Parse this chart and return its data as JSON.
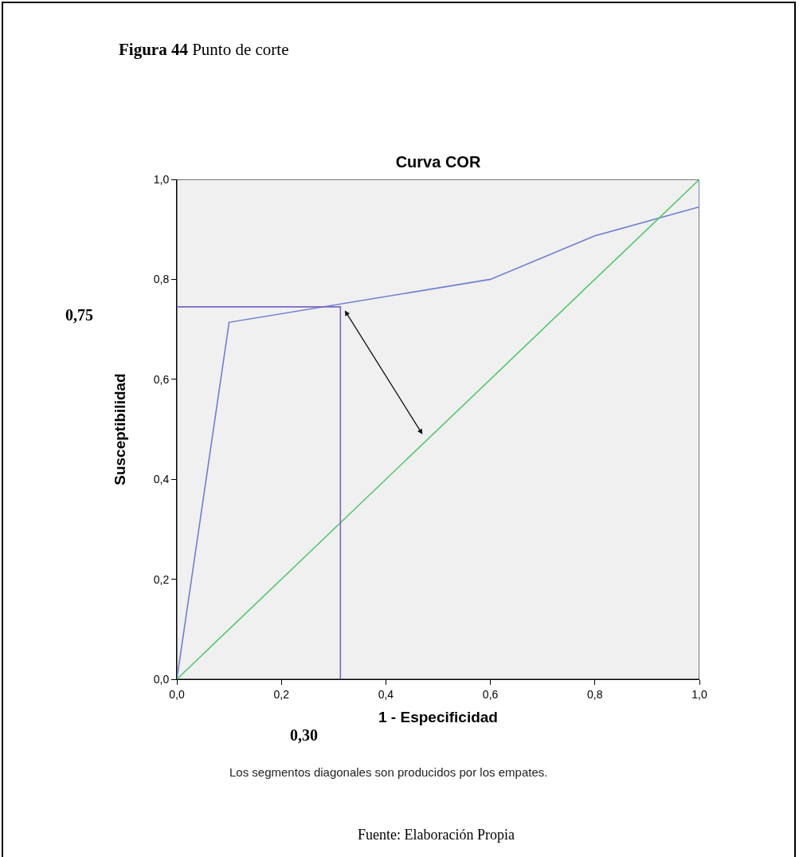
{
  "chart_data": {
    "type": "line",
    "title": "Curva COR",
    "xlabel": "1 - Especificidad",
    "ylabel": "Susceptibilidad",
    "series": [
      {
        "color": "#6f7fd0",
        "x": [
          0,
          0.1,
          0.6,
          0.8,
          1,
          1
        ],
        "values": [
          0,
          0.714,
          0.8,
          0.887,
          0.945,
          1
        ]
      },
      {
        "color": "#52c86a",
        "x": [
          0,
          1
        ],
        "values": [
          0,
          1
        ]
      },
      {
        "color": "#7a68c0",
        "x": [
          0,
          0.313,
          0.313
        ],
        "values": [
          0.745,
          0.745,
          0
        ]
      }
    ],
    "xlim": [
      0,
      1
    ],
    "ylim": [
      0,
      1
    ],
    "xticks": [
      {
        "value": 0,
        "label": "0,0"
      },
      {
        "value": 0.2,
        "label": "0,2"
      },
      {
        "value": 0.4,
        "label": "0,4"
      },
      {
        "value": 0.6,
        "label": "0,6"
      },
      {
        "value": 0.8,
        "label": "0,8"
      },
      {
        "value": 1,
        "label": "1,0"
      }
    ],
    "yticks": [
      {
        "value": 0,
        "label": "0,0"
      },
      {
        "value": 0.2,
        "label": "0,2"
      },
      {
        "value": 0.4,
        "label": "0,4"
      },
      {
        "value": 0.6,
        "label": "0,6"
      },
      {
        "value": 0.8,
        "label": "0,8"
      },
      {
        "value": 1,
        "label": "1,0"
      }
    ],
    "grid": false,
    "marker": "none",
    "line_style": "solid",
    "annotations": [
      "Figura 44 Punto de corte",
      "0,75",
      "0,30",
      "Los segmentos diagonales son producidos por los empates.",
      "Fuente: Elaboración Propia"
    ]
  }
}
